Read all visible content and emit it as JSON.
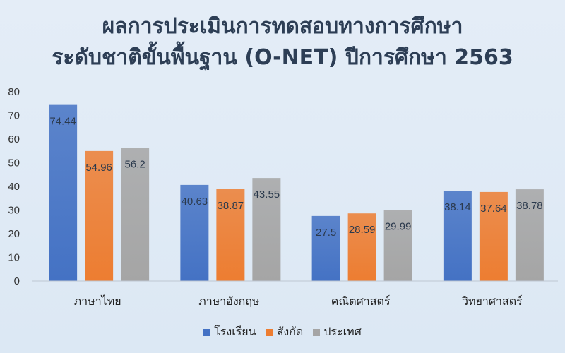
{
  "chart_data": {
    "type": "bar",
    "title_line1": "ผลการประเมินการทดสอบทางการศึกษา",
    "title_line2": "ระดับชาติขั้นพื้นฐาน (O-NET) ปีการศึกษา 2563",
    "categories": [
      "ภาษาไทย",
      "ภาษาอังกฤษ",
      "คณิตศาสตร์",
      "วิทยาศาสตร์"
    ],
    "series": [
      {
        "name": "โรงเรียน",
        "values": [
          74.44,
          40.63,
          27.5,
          38.14
        ],
        "color": "#4472c4"
      },
      {
        "name": "สังกัด",
        "values": [
          54.96,
          38.87,
          28.59,
          37.64
        ],
        "color": "#ed7d31"
      },
      {
        "name": "ประเทศ",
        "values": [
          56.2,
          43.55,
          29.99,
          38.78
        ],
        "color": "#a5a5a5"
      }
    ],
    "ylim": [
      0,
      80
    ],
    "yticks": [
      0,
      10,
      20,
      30,
      40,
      50,
      60,
      70,
      80
    ],
    "grid": false,
    "legend_position": "bottom"
  }
}
